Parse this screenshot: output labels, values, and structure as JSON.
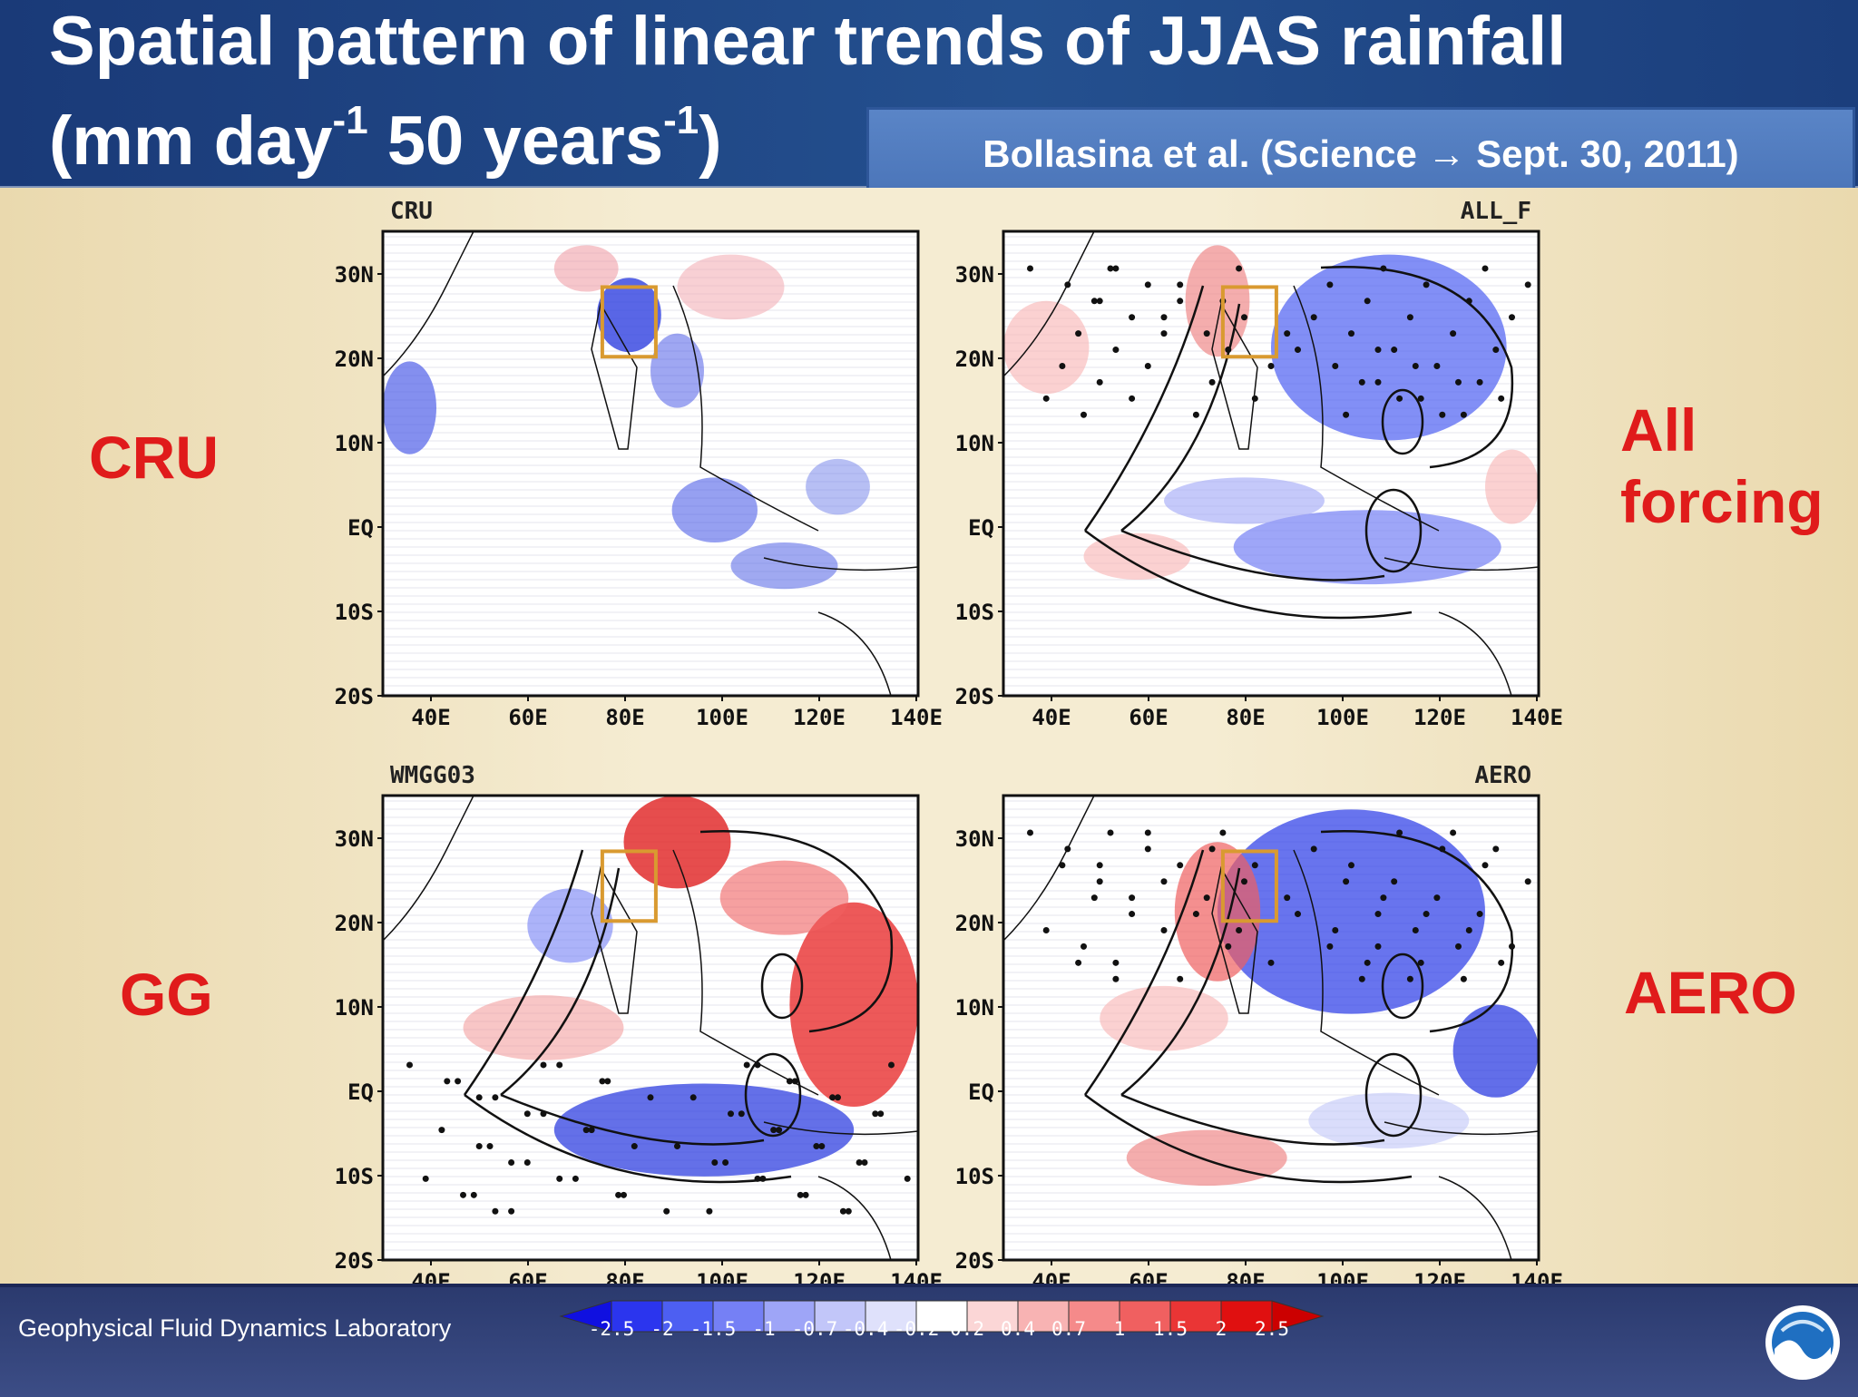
{
  "header": {
    "title_line1": "Spatial pattern of linear trends of JJAS rainfall",
    "title_line2_a": "(mm day",
    "title_line2_sup1": "-1",
    "title_line2_b": " 50 years",
    "title_line2_sup2": "-1",
    "title_line2_c": ")",
    "citation": "Bollasina et al. (Science → Sept. 30, 2011)"
  },
  "labels": {
    "cru": "CRU",
    "all_forcing_line1": "All",
    "all_forcing_line2": "forcing",
    "gg": "GG",
    "aero": "AERO"
  },
  "panels": [
    {
      "name": "CRU",
      "title_side": "left"
    },
    {
      "name": "ALL_F",
      "title_side": "right"
    },
    {
      "name": "WMGG03",
      "title_side": "left"
    },
    {
      "name": "AERO",
      "title_side": "right"
    }
  ],
  "axes": {
    "lat_ticks": [
      "30N",
      "20N",
      "10N",
      "EQ",
      "10S",
      "20S"
    ],
    "lon_ticks": [
      "40E",
      "60E",
      "80E",
      "100E",
      "120E",
      "140E"
    ]
  },
  "colorbar": {
    "ticks": [
      "-2.5",
      "-2",
      "-1.5",
      "-1",
      "-0.7",
      "-0.4",
      "-0.2",
      "0.2",
      "0.4",
      "0.7",
      "1",
      "1.5",
      "2",
      "2.5"
    ],
    "colors": [
      "#1010e0",
      "#2b35ee",
      "#4d5ff2",
      "#7580f5",
      "#9ea5f7",
      "#c2c6f9",
      "#dfe1fb",
      "#ffffff",
      "#fbd6d6",
      "#f8b3b3",
      "#f58a8a",
      "#f06060",
      "#ea3535",
      "#e01010",
      "#cc0000"
    ]
  },
  "footer": {
    "lab_name": "Geophysical Fluid Dynamics Laboratory"
  },
  "colors": {
    "accent_red": "#e01b1b",
    "header_blue": "#1a3a78",
    "citation_blue": "#4a74b8"
  },
  "icons": {
    "logo": "noaa-logo"
  }
}
